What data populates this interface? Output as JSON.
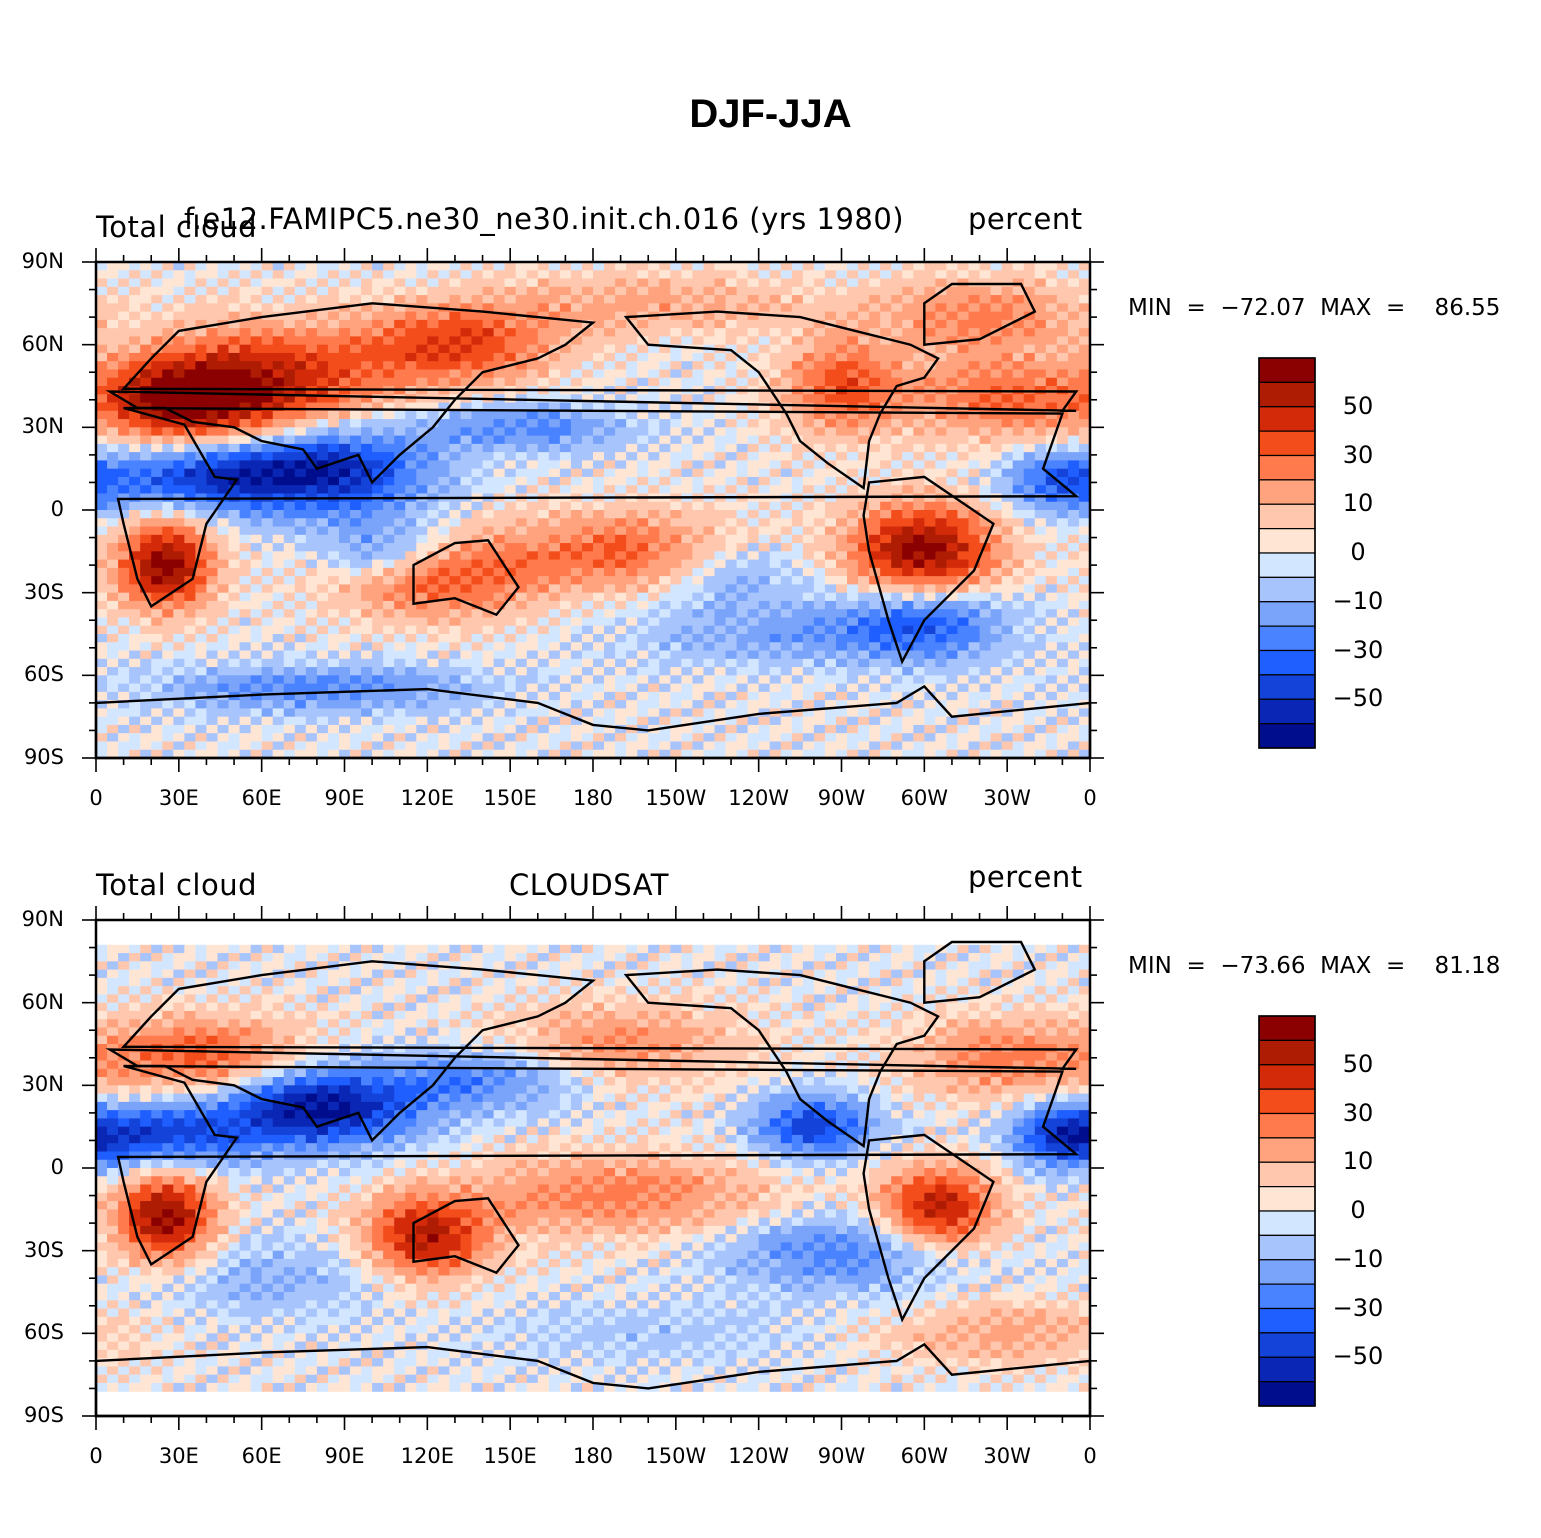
{
  "figure": {
    "title": "DJF-JJA"
  },
  "colors": {
    "scale": [
      "#000d8c",
      "#0a26b4",
      "#1443d9",
      "#1f5eff",
      "#4a83ff",
      "#7aa3fa",
      "#a8c4fd",
      "#d3e6ff",
      "#ffe6d4",
      "#ffc8ae",
      "#ffa37e",
      "#ff7a4d",
      "#f44d1c",
      "#d32a0a",
      "#ae1c03",
      "#8b0000"
    ],
    "land_outline": "#000000"
  },
  "panels": [
    {
      "left_text": "Total cloud",
      "center_text": "f.e12.FAMIPC5.ne30_ne30.init.ch.016 (yrs 1980)",
      "right_text": "percent",
      "min_text": "MIN  =  −72.07  MAX  =    86.55",
      "data_rows": "full"
    },
    {
      "left_text": "Total cloud",
      "center_text": "CLOUDSAT",
      "right_text": "percent",
      "min_text": "MIN  =  −73.66  MAX  =    81.18",
      "data_rows": "limited"
    }
  ],
  "axes": {
    "lat_labels": [
      "90N",
      "60N",
      "30N",
      "0",
      "30S",
      "60S",
      "90S"
    ],
    "lon_labels": [
      "0",
      "30E",
      "60E",
      "90E",
      "120E",
      "150E",
      "180",
      "150W",
      "120W",
      "90W",
      "60W",
      "30W",
      "0"
    ]
  },
  "colorbar": {
    "labels": [
      "50",
      "30",
      "10",
      "0",
      "−10",
      "−30",
      "−50"
    ]
  }
}
